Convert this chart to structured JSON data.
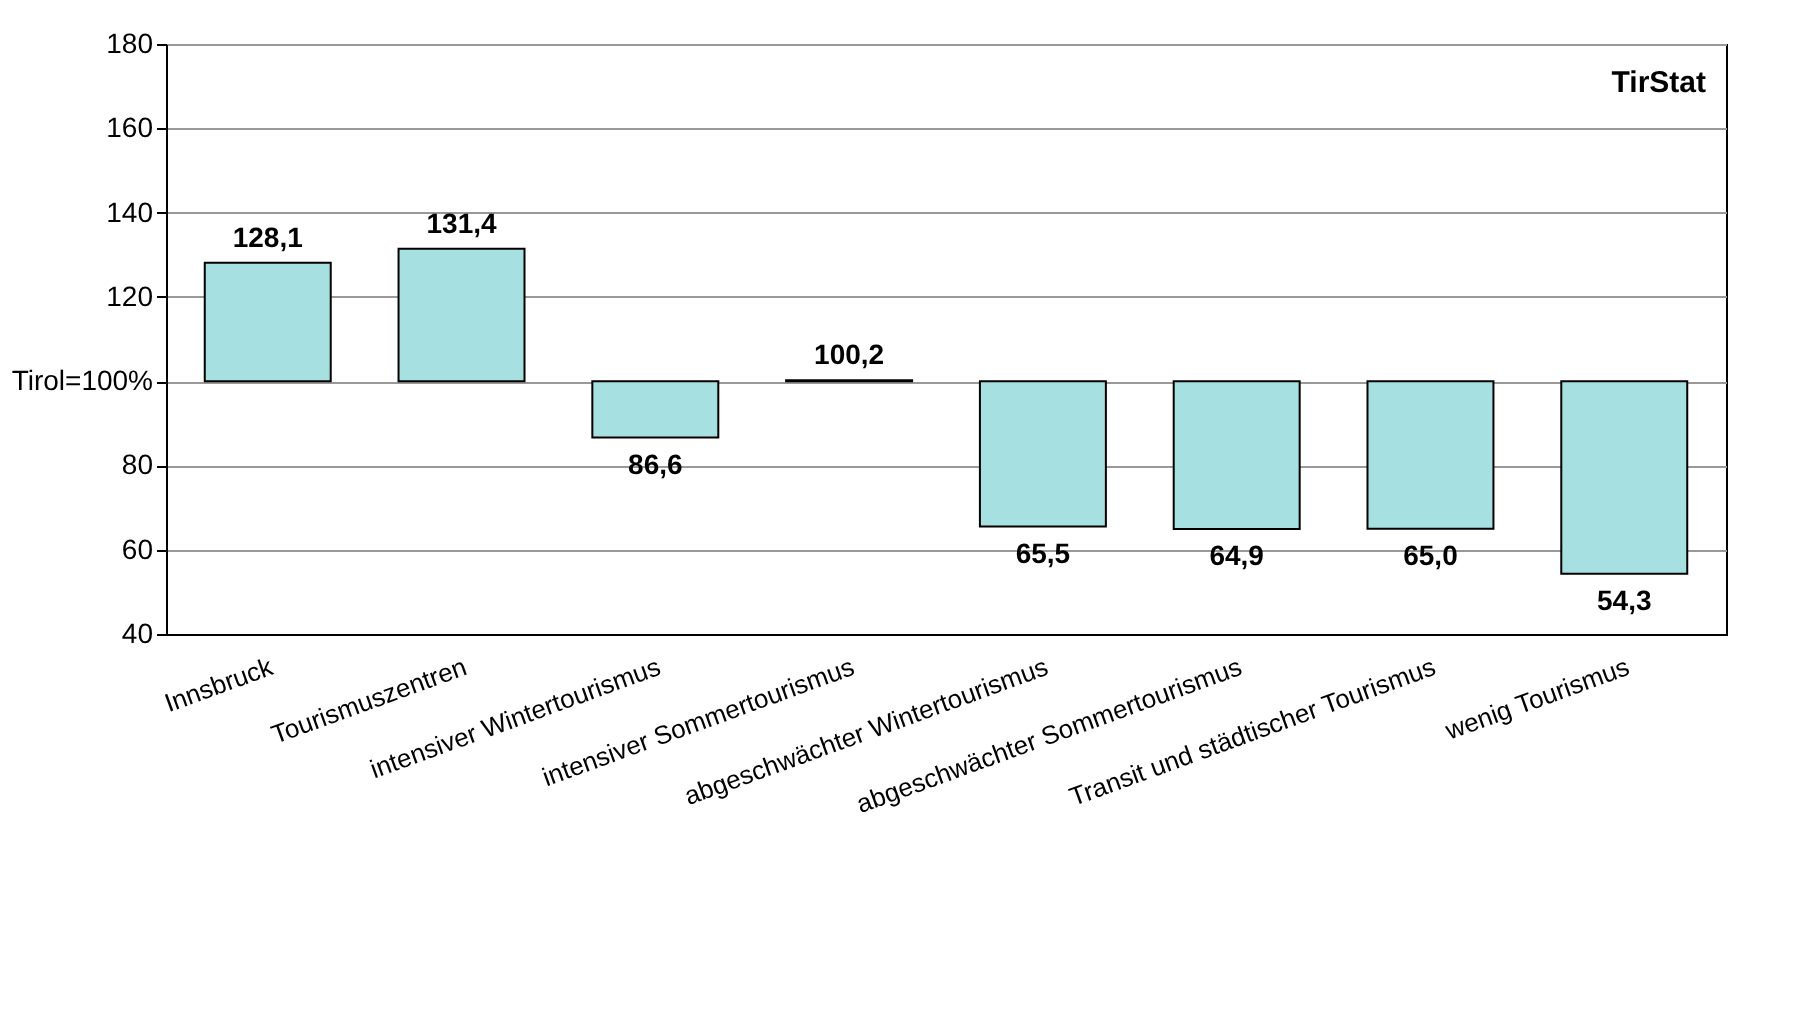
{
  "chart_data": {
    "type": "bar",
    "categories": [
      "Innsbruck",
      "Tourismuszentren",
      "intensiver Wintertourismus",
      "intensiver Sommertourismus",
      "abgeschwächter Wintertourismus",
      "abgeschwächter Sommertourismus",
      "Transit und städtischer Tourismus",
      "wenig Tourismus"
    ],
    "base": [
      100,
      100,
      100,
      100,
      100,
      100,
      100,
      100
    ],
    "values": [
      28.1,
      31.4,
      -13.4,
      0.2,
      -34.5,
      -35.1,
      -35.0,
      -45.7
    ],
    "value_labels": [
      "128,1",
      "131,4",
      "86,6",
      "100,2",
      "65,5",
      "64,9",
      "65,0",
      "54,3"
    ],
    "color": "#a6e0e0",
    "ylim": [
      40,
      180
    ],
    "yticks": [
      40,
      60,
      80,
      {
        "value": 100,
        "label": "Tirol=100%"
      },
      120,
      140,
      160,
      180
    ],
    "grid": "y",
    "annotations": [
      "TirStat"
    ]
  }
}
